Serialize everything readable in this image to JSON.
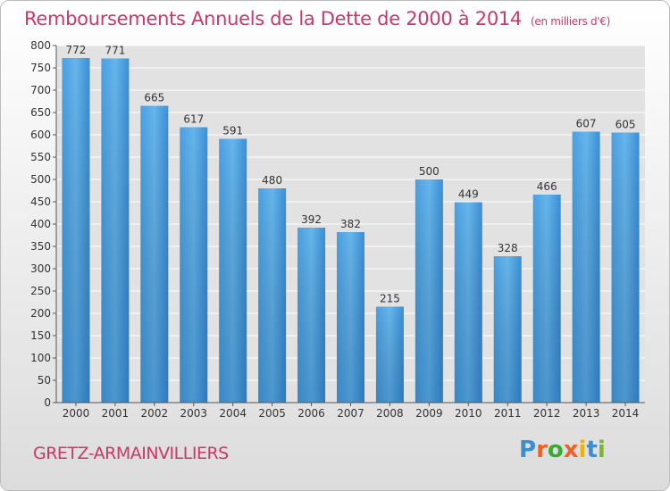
{
  "title": "Remboursements Annuels de la Dette de 2000 à 2014",
  "unit_note": "(en milliers d'€)",
  "city": "GRETZ-ARMAINVILLIERS",
  "logo": {
    "text": "Proxiti",
    "colors": [
      "#3a8fd0",
      "#e8632a",
      "#3aa93a",
      "#e8632a",
      "#f0b400",
      "#3a8fd0",
      "#7ab82a"
    ]
  },
  "colors": {
    "bar_light": "#66b5ec",
    "bar_dark": "#2a7dc0",
    "title": "#c8386a",
    "grid": "#ffffff"
  },
  "chart_data": {
    "type": "bar",
    "title": "Remboursements Annuels de la Dette de 2000 à 2014",
    "xlabel": "",
    "ylabel": "",
    "ylim": [
      0,
      800
    ],
    "yticks": [
      0,
      50,
      100,
      150,
      200,
      250,
      300,
      350,
      400,
      450,
      500,
      550,
      600,
      650,
      700,
      750,
      800
    ],
    "categories": [
      "2000",
      "2001",
      "2002",
      "2003",
      "2004",
      "2005",
      "2006",
      "2007",
      "2008",
      "2009",
      "2010",
      "2011",
      "2012",
      "2013",
      "2014"
    ],
    "values": [
      772,
      771,
      665,
      617,
      591,
      480,
      392,
      382,
      215,
      500,
      449,
      328,
      466,
      607,
      605
    ],
    "data_labels": [
      "772",
      "771",
      "665",
      "617",
      "591",
      "480",
      "392",
      "382",
      "215",
      "500",
      "449",
      "328",
      "466",
      "607",
      "605"
    ]
  }
}
